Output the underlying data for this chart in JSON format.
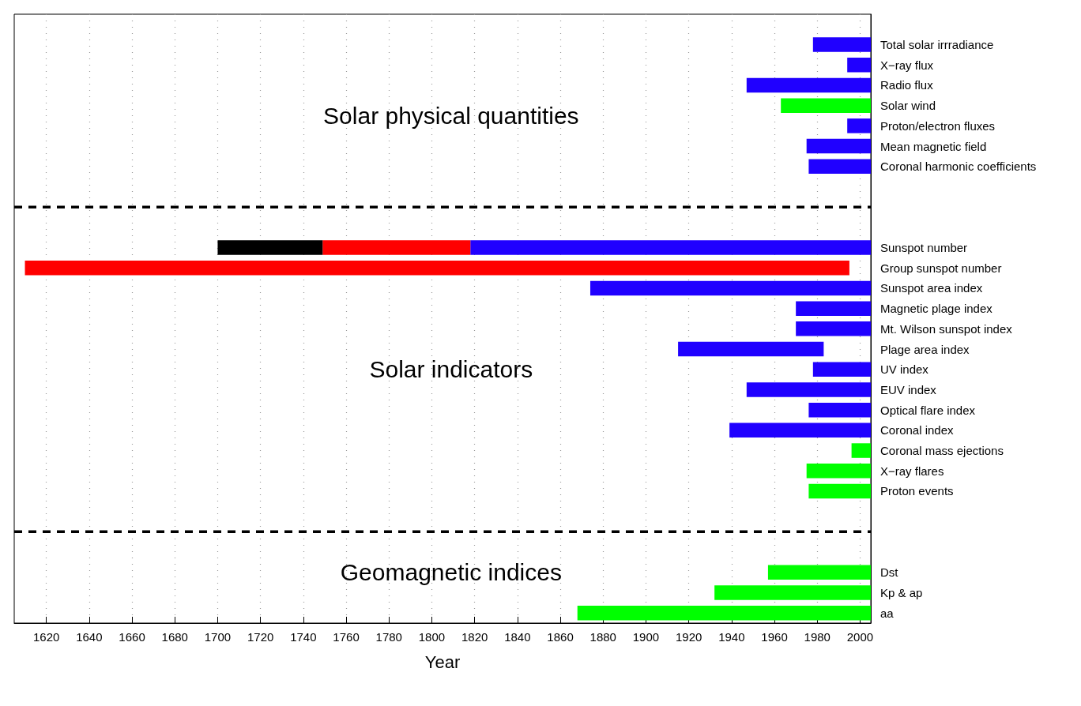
{
  "chart_data": {
    "type": "bar",
    "orientation": "horizontal",
    "xlabel": "Year",
    "categories": [
      null,
      "Total solar irrradiance",
      "X−ray flux",
      "Radio flux",
      "Solar wind",
      "Proton/electron fluxes",
      "Mean magnetic field",
      "Coronal harmonic coefficients",
      null,
      null,
      null,
      "Sunspot number",
      "Group sunspot number",
      "Sunspot area index",
      "Magnetic plage index",
      "Mt. Wilson sunspot index",
      "Plage area index",
      "UV index",
      "EUV index",
      "Optical flare index",
      "Coronal index",
      "Coronal mass ejections",
      "X−ray flares",
      "Proton events",
      null,
      null,
      null,
      "Dst",
      "Kp & ap",
      "aa"
    ],
    "series": [
      {
        "color": "#2000ff",
        "base": [
          null,
          1978,
          1994,
          1947,
          null,
          1994,
          1975,
          1976,
          null,
          null,
          null,
          1818,
          null,
          1874,
          1970,
          1970,
          1915,
          1978,
          1947,
          1976,
          1939,
          null,
          null,
          null,
          null,
          null,
          null,
          null,
          null,
          null
        ],
        "values": [
          null,
          27,
          11,
          58,
          null,
          11,
          30,
          29,
          null,
          null,
          null,
          187,
          null,
          131,
          35,
          35,
          68,
          27,
          58,
          29,
          66,
          null,
          null,
          null,
          null,
          null,
          null,
          null,
          null,
          null
        ]
      },
      {
        "color": "#ff0000",
        "base": [
          null,
          null,
          null,
          null,
          null,
          null,
          null,
          null,
          null,
          null,
          null,
          1749,
          1610,
          null,
          null,
          null,
          null,
          null,
          null,
          null,
          null,
          null,
          null,
          null,
          null,
          null,
          null,
          null,
          null,
          null
        ],
        "values": [
          null,
          null,
          null,
          null,
          null,
          null,
          null,
          null,
          null,
          null,
          null,
          69,
          385,
          null,
          null,
          null,
          null,
          null,
          null,
          null,
          null,
          null,
          null,
          null,
          null,
          null,
          null,
          null,
          null,
          null
        ]
      },
      {
        "color": "#000000",
        "base": [
          null,
          null,
          null,
          null,
          null,
          null,
          null,
          null,
          null,
          null,
          null,
          1700,
          null,
          null,
          null,
          null,
          null,
          null,
          null,
          null,
          null,
          null,
          null,
          null,
          null,
          null,
          null,
          null,
          null,
          null
        ],
        "values": [
          null,
          null,
          null,
          null,
          null,
          null,
          null,
          null,
          null,
          null,
          null,
          49,
          null,
          null,
          null,
          null,
          null,
          null,
          null,
          null,
          null,
          null,
          null,
          null,
          null,
          null,
          null,
          null,
          null,
          null
        ]
      },
      {
        "color": "#00ff00",
        "base": [
          null,
          null,
          null,
          null,
          1963,
          null,
          null,
          null,
          null,
          null,
          null,
          null,
          null,
          null,
          null,
          null,
          null,
          null,
          null,
          null,
          null,
          1996,
          1975,
          1976,
          null,
          null,
          null,
          1957,
          1932,
          1868
        ],
        "values": [
          null,
          null,
          null,
          null,
          42,
          null,
          null,
          null,
          null,
          null,
          null,
          null,
          null,
          null,
          null,
          null,
          null,
          null,
          null,
          null,
          null,
          9,
          30,
          29,
          null,
          null,
          null,
          48,
          73,
          137
        ]
      }
    ],
    "xlim": [
      1605,
      2005
    ],
    "xticks": [
      1620,
      1640,
      1660,
      1680,
      1700,
      1720,
      1740,
      1760,
      1780,
      1800,
      1820,
      1840,
      1860,
      1880,
      1900,
      1920,
      1940,
      1960,
      1980,
      2000
    ],
    "grid": "x",
    "annotations": [
      "Solar physical quantities",
      "Solar indicators",
      "Geomagnetic indices"
    ]
  }
}
